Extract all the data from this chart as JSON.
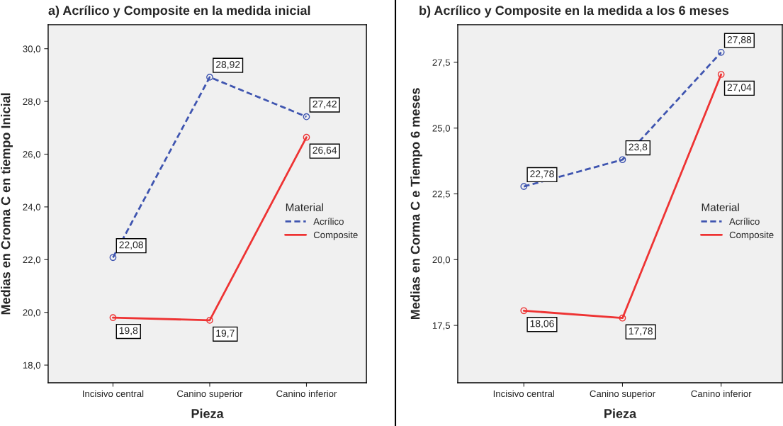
{
  "chart_data": [
    {
      "type": "line",
      "title": "a) Acrílico y Composite en la medida inicial",
      "xlabel": "Pieza",
      "ylabel": "Medias en Croma C en tiempo Inicial",
      "legend_title": "Material",
      "legend": "center right",
      "marker": "circle",
      "grid": false,
      "categories": [
        "Incisivo central",
        "Canino superior",
        "Canino inferior"
      ],
      "ylim": [
        17.33,
        30.91
      ],
      "yticks": [
        {
          "value": 18,
          "label": "18,0"
        },
        {
          "value": 20,
          "label": "20,0"
        },
        {
          "value": 22,
          "label": "22,0"
        },
        {
          "value": 24,
          "label": "24,0"
        },
        {
          "value": 26,
          "label": "26,0"
        },
        {
          "value": 28,
          "label": "28,0"
        },
        {
          "value": 30,
          "label": "30,0"
        }
      ],
      "series": [
        {
          "name": "Acrílico",
          "color": "#3f55b0",
          "line_style": "dashed",
          "values": [
            22.08,
            28.92,
            27.42
          ],
          "value_labels": [
            "22,08",
            "28,92",
            "27,42"
          ]
        },
        {
          "name": "Composite",
          "color": "#ee3333",
          "line_style": "solid",
          "values": [
            19.8,
            19.7,
            26.64
          ],
          "value_labels": [
            "19,8",
            "19,7",
            "26,64"
          ]
        }
      ]
    },
    {
      "type": "line",
      "title": "b) Acrílico y Composite en la medida a los 6 meses",
      "xlabel": "Pieza",
      "ylabel": "Medias en Corma C e Tiempo 6 meses",
      "legend_title": "Material",
      "legend": "center right",
      "marker": "circle",
      "grid": false,
      "categories": [
        "Incisivo central",
        "Canino superior",
        "Canino inferior"
      ],
      "ylim": [
        15.32,
        28.93
      ],
      "yticks": [
        {
          "value": 17.5,
          "label": "17,5"
        },
        {
          "value": 20,
          "label": "20,0"
        },
        {
          "value": 22.5,
          "label": "22,5"
        },
        {
          "value": 25,
          "label": "25,0"
        },
        {
          "value": 27.5,
          "label": "27,5"
        }
      ],
      "series": [
        {
          "name": "Acrílico",
          "color": "#3f55b0",
          "line_style": "dashed",
          "values": [
            22.78,
            23.8,
            27.88
          ],
          "value_labels": [
            "22,78",
            "23,8",
            "27,88"
          ]
        },
        {
          "name": "Composite",
          "color": "#ee3333",
          "line_style": "solid",
          "values": [
            18.06,
            17.78,
            27.04
          ],
          "value_labels": [
            "18,06",
            "17,78",
            "27,04"
          ]
        }
      ]
    }
  ]
}
